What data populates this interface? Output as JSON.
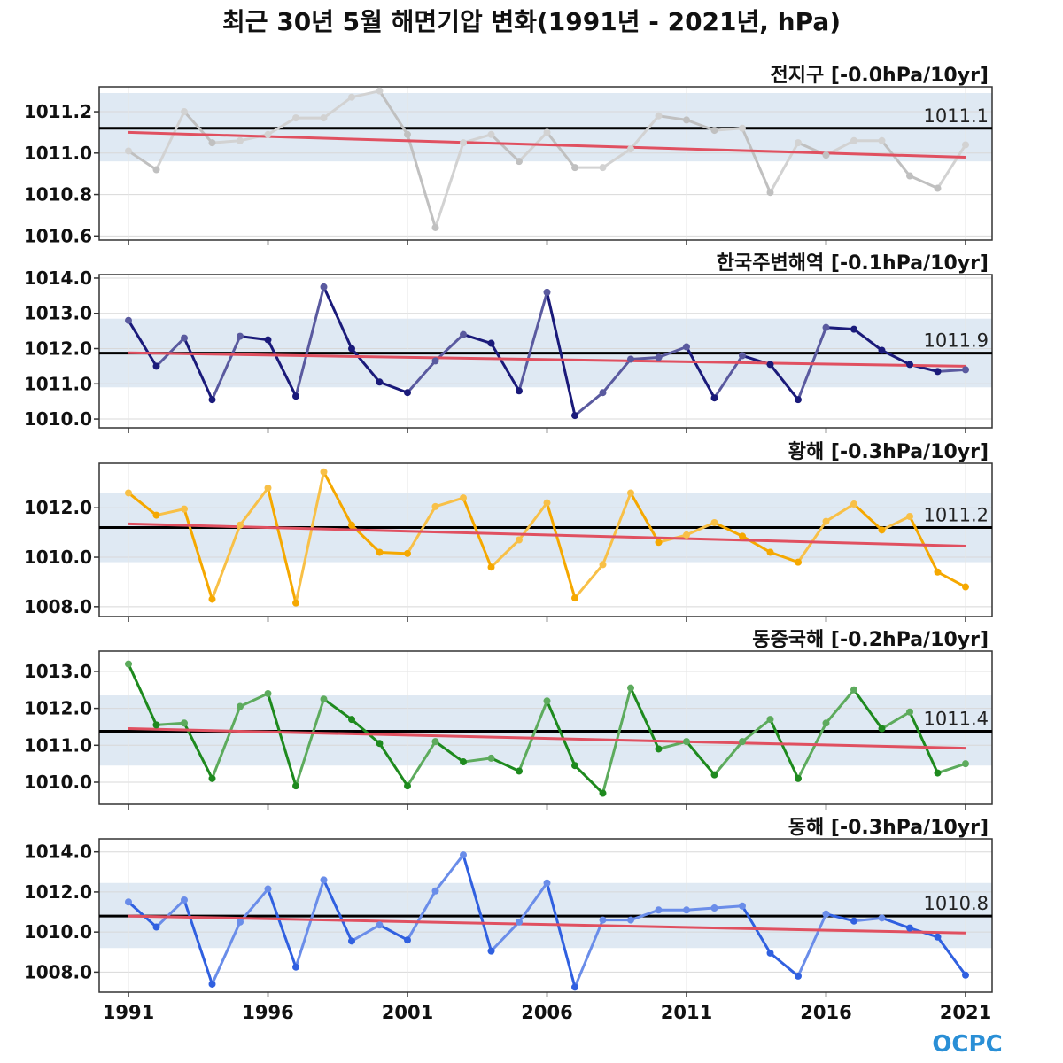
{
  "chart_data": {
    "type": "line",
    "title": "최근 30년 5월 해면기압 변화(1991년 - 2021년, hPa)",
    "x": [
      1991,
      1992,
      1993,
      1994,
      1995,
      1996,
      1997,
      1998,
      1999,
      2000,
      2001,
      2002,
      2003,
      2004,
      2005,
      2006,
      2007,
      2008,
      2009,
      2010,
      2011,
      2012,
      2013,
      2014,
      2015,
      2016,
      2017,
      2018,
      2019,
      2020,
      2021
    ],
    "x_ticks": [
      "1991",
      "1996",
      "2001",
      "2006",
      "2011",
      "2016",
      "2021"
    ],
    "panels": [
      {
        "name": "전지구",
        "title": "전지구 [-0.0hPa/10yr]",
        "color": "#c0c0c0",
        "ylim": [
          1010.58,
          1011.32
        ],
        "yticks": [
          1010.6,
          1010.8,
          1011.0,
          1011.2
        ],
        "ytick_labels": [
          "1010.6",
          "1010.8",
          "1011.0",
          "1011.2"
        ],
        "band": [
          1010.96,
          1011.29
        ],
        "mean": 1011.12,
        "mean_label": "1011.1",
        "trend": [
          1011.1,
          1010.98
        ],
        "values": [
          1011.01,
          1010.92,
          1011.2,
          1011.05,
          1011.06,
          1011.09,
          1011.17,
          1011.17,
          1011.27,
          1011.3,
          1011.09,
          1010.64,
          1011.05,
          1011.09,
          1010.96,
          1011.1,
          1010.93,
          1010.93,
          1011.02,
          1011.18,
          1011.16,
          1011.11,
          1011.12,
          1010.81,
          1011.05,
          1010.99,
          1011.06,
          1011.06,
          1010.89,
          1010.83,
          1011.04
        ]
      },
      {
        "name": "한국주변해역",
        "title": "한국주변해역 [-0.1hPa/10yr]",
        "color": "#1a1a7a",
        "ylim": [
          1009.75,
          1014.1
        ],
        "yticks": [
          1010.0,
          1011.0,
          1012.0,
          1013.0,
          1014.0
        ],
        "ytick_labels": [
          "1010.0",
          "1011.0",
          "1012.0",
          "1013.0",
          "1014.0"
        ],
        "band": [
          1010.9,
          1012.85
        ],
        "mean": 1011.87,
        "mean_label": "1011.9",
        "trend": [
          1011.88,
          1011.5
        ],
        "values": [
          1012.8,
          1011.5,
          1012.3,
          1010.55,
          1012.35,
          1012.25,
          1010.65,
          1013.75,
          1012.0,
          1011.05,
          1010.75,
          1011.65,
          1012.4,
          1012.15,
          1010.8,
          1013.6,
          1010.1,
          1010.75,
          1011.7,
          1011.75,
          1012.05,
          1010.6,
          1011.8,
          1011.55,
          1010.55,
          1012.6,
          1012.55,
          1011.95,
          1011.55,
          1011.35,
          1011.4
        ]
      },
      {
        "name": "황해",
        "title": "황해 [-0.3hPa/10yr]",
        "color": "#f5a800",
        "ylim": [
          1007.6,
          1013.8
        ],
        "yticks": [
          1008.0,
          1010.0,
          1012.0
        ],
        "ytick_labels": [
          "1008.0",
          "1010.0",
          "1012.0"
        ],
        "band": [
          1009.8,
          1012.6
        ],
        "mean": 1011.2,
        "mean_label": "1011.2",
        "trend": [
          1011.35,
          1010.45
        ],
        "values": [
          1012.6,
          1011.7,
          1011.95,
          1008.3,
          1011.3,
          1012.8,
          1008.15,
          1013.45,
          1011.3,
          1010.2,
          1010.15,
          1012.05,
          1012.4,
          1009.6,
          1010.7,
          1012.2,
          1008.35,
          1009.7,
          1012.6,
          1010.6,
          1010.9,
          1011.4,
          1010.85,
          1010.2,
          1009.8,
          1011.45,
          1012.15,
          1011.1,
          1011.65,
          1009.4,
          1008.8
        ]
      },
      {
        "name": "동중국해",
        "title": "동중국해 [-0.2hPa/10yr]",
        "color": "#1e8a1e",
        "ylim": [
          1009.4,
          1013.55
        ],
        "yticks": [
          1010.0,
          1011.0,
          1012.0,
          1013.0
        ],
        "ytick_labels": [
          "1010.0",
          "1011.0",
          "1012.0",
          "1013.0"
        ],
        "band": [
          1010.45,
          1012.35
        ],
        "mean": 1011.38,
        "mean_label": "1011.4",
        "trend": [
          1011.45,
          1010.92
        ],
        "values": [
          1013.2,
          1011.55,
          1011.6,
          1010.1,
          1012.05,
          1012.4,
          1009.9,
          1012.25,
          1011.7,
          1011.05,
          1009.9,
          1011.1,
          1010.55,
          1010.65,
          1010.3,
          1012.2,
          1010.45,
          1009.7,
          1012.55,
          1010.9,
          1011.1,
          1010.2,
          1011.1,
          1011.7,
          1010.1,
          1011.6,
          1012.5,
          1011.45,
          1011.9,
          1010.25,
          1010.5
        ]
      },
      {
        "name": "동해",
        "title": "동해 [-0.3hPa/10yr]",
        "color": "#3060e0",
        "ylim": [
          1007.0,
          1014.65
        ],
        "yticks": [
          1008.0,
          1010.0,
          1012.0,
          1014.0
        ],
        "ytick_labels": [
          "1008.0",
          "1010.0",
          "1012.0",
          "1014.0"
        ],
        "band": [
          1009.2,
          1012.45
        ],
        "mean": 1010.8,
        "mean_label": "1010.8",
        "trend": [
          1010.8,
          1009.95
        ],
        "values": [
          1011.5,
          1010.25,
          1011.6,
          1007.4,
          1010.5,
          1012.15,
          1008.25,
          1012.6,
          1009.55,
          1010.35,
          1009.6,
          1012.05,
          1013.85,
          1009.05,
          1010.5,
          1012.45,
          1007.25,
          1010.6,
          1010.6,
          1011.1,
          1011.1,
          1011.2,
          1011.3,
          1008.95,
          1007.8,
          1010.9,
          1010.55,
          1010.7,
          1010.2,
          1009.75,
          1007.85
        ]
      }
    ],
    "mean_line_color": "#000000",
    "trend_line_color": "#e05060",
    "band_color": "#dfe9f3"
  },
  "logo": {
    "text": "OCPC"
  }
}
